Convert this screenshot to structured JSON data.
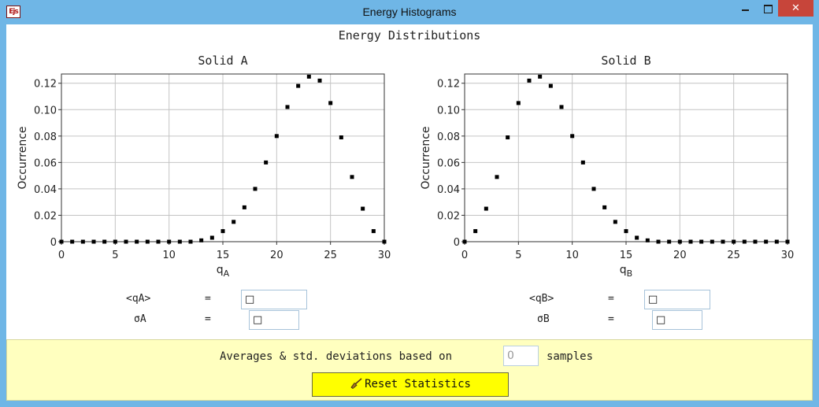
{
  "window": {
    "title": "Energy Histograms",
    "app_icon_text": "Ejs"
  },
  "main_title": "Energy Distributions",
  "plots": [
    {
      "title": "Solid A",
      "ylabel": "Occurrence",
      "xlabel_main": "q",
      "xlabel_sub": "A",
      "xlim": [
        0,
        30
      ],
      "ylim": [
        0,
        0.127
      ],
      "xticks": [
        0,
        5,
        10,
        15,
        20,
        25,
        30
      ],
      "yticks": [
        0,
        0.02,
        0.04,
        0.06,
        0.08,
        0.1,
        0.12
      ],
      "ytick_labels": [
        "0",
        "0.02",
        "0.04",
        "0.06",
        "0.08",
        "0.10",
        "0.12"
      ]
    },
    {
      "title": "Solid B",
      "ylabel": "Occurrence",
      "xlabel_main": "q",
      "xlabel_sub": "B",
      "xlim": [
        0,
        30
      ],
      "ylim": [
        0,
        0.127
      ],
      "xticks": [
        0,
        5,
        10,
        15,
        20,
        25,
        30
      ],
      "yticks": [
        0,
        0.02,
        0.04,
        0.06,
        0.08,
        0.1,
        0.12
      ],
      "ytick_labels": [
        "0",
        "0.02",
        "0.04",
        "0.06",
        "0.08",
        "0.10",
        "0.12"
      ]
    }
  ],
  "chart_data": [
    {
      "type": "scatter",
      "title": "Solid A",
      "xlabel": "qA",
      "ylabel": "Occurrence",
      "xlim": [
        0,
        30
      ],
      "ylim": [
        0,
        0.127
      ],
      "grid": true,
      "x": [
        0,
        1,
        2,
        3,
        4,
        5,
        6,
        7,
        8,
        9,
        10,
        11,
        12,
        13,
        14,
        15,
        16,
        17,
        18,
        19,
        20,
        21,
        22,
        23,
        24,
        25,
        26,
        27,
        28,
        29,
        30
      ],
      "y": [
        0,
        0,
        0,
        0,
        0,
        0,
        0,
        0,
        0,
        0,
        0,
        0,
        0,
        0.001,
        0.003,
        0.008,
        0.015,
        0.026,
        0.04,
        0.06,
        0.08,
        0.102,
        0.118,
        0.125,
        0.122,
        0.105,
        0.079,
        0.049,
        0.025,
        0.008,
        0.0
      ]
    },
    {
      "type": "scatter",
      "title": "Solid B",
      "xlabel": "qB",
      "ylabel": "Occurrence",
      "xlim": [
        0,
        30
      ],
      "ylim": [
        0,
        0.127
      ],
      "grid": true,
      "x": [
        0,
        1,
        2,
        3,
        4,
        5,
        6,
        7,
        8,
        9,
        10,
        11,
        12,
        13,
        14,
        15,
        16,
        17,
        18,
        19,
        20,
        21,
        22,
        23,
        24,
        25,
        26,
        27,
        28,
        29,
        30
      ],
      "y": [
        0.0,
        0.008,
        0.025,
        0.049,
        0.079,
        0.105,
        0.122,
        0.125,
        0.118,
        0.102,
        0.08,
        0.06,
        0.04,
        0.026,
        0.015,
        0.008,
        0.003,
        0.001,
        0,
        0,
        0,
        0,
        0,
        0,
        0,
        0,
        0,
        0,
        0,
        0,
        0
      ]
    }
  ],
  "stats": {
    "a": {
      "mean_label": "<qA>",
      "sigma_label": "σA",
      "eq": "=",
      "mean_value": "□",
      "sigma_value": "□"
    },
    "b": {
      "mean_label": "<qB>",
      "sigma_label": "σB",
      "eq": "=",
      "mean_value": "□",
      "sigma_value": "□"
    }
  },
  "panel": {
    "samples_prefix": "Averages & std. deviations based on",
    "samples_value": "0",
    "samples_suffix": "samples",
    "reset_label": "Reset Statistics"
  },
  "colors": {
    "titlebar": "#6fb6e6",
    "close": "#c7453a",
    "panel": "#ffffbf",
    "reset_button": "#ffff00"
  }
}
